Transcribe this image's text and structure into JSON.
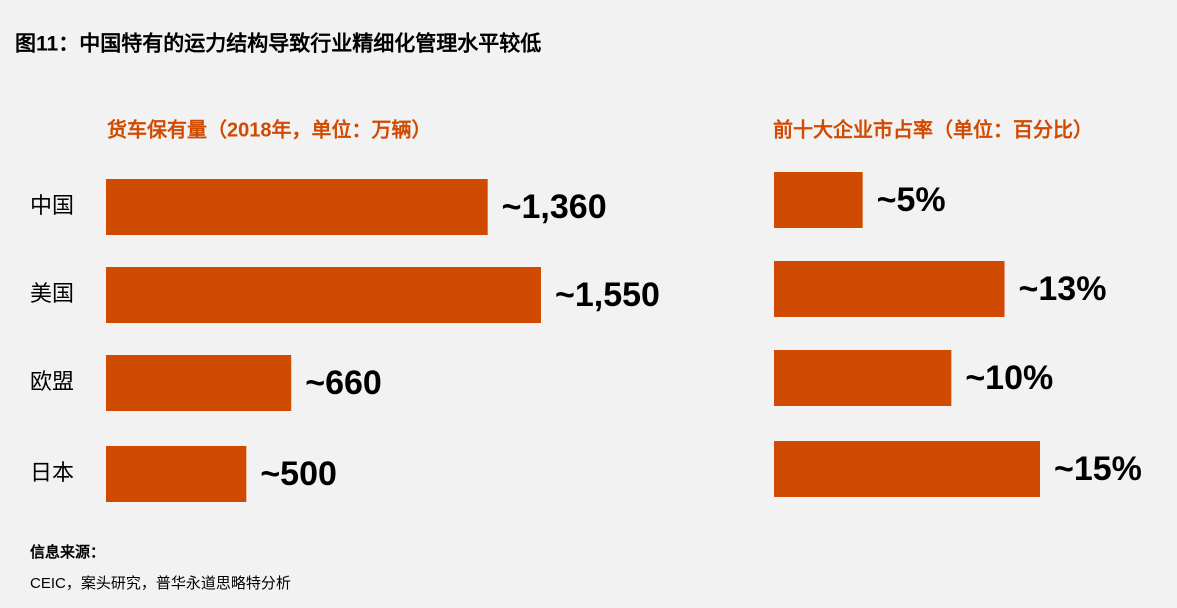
{
  "title": "图11：中国特有的运力结构导致行业精细化管理水平较低",
  "chart_data": [
    {
      "type": "bar",
      "orientation": "horizontal",
      "title": "货车保有量（2018年，单位：万辆）",
      "categories": [
        "中国",
        "美国",
        "欧盟",
        "日本"
      ],
      "values": [
        1360,
        1550,
        660,
        500
      ],
      "value_labels": [
        "~1,360",
        "~1,550",
        "~660",
        "~500"
      ],
      "color": "#d04a02"
    },
    {
      "type": "bar",
      "orientation": "horizontal",
      "title": "前十大企业市占率（单位：百分比）",
      "values": [
        5,
        13,
        10,
        15
      ],
      "value_labels": [
        "~5%",
        "~13%",
        "~10%",
        "~15%"
      ],
      "color": "#d04a02"
    }
  ],
  "source": {
    "heading": "信息来源：",
    "text": "CEIC，案头研究，普华永道思略特分析"
  }
}
